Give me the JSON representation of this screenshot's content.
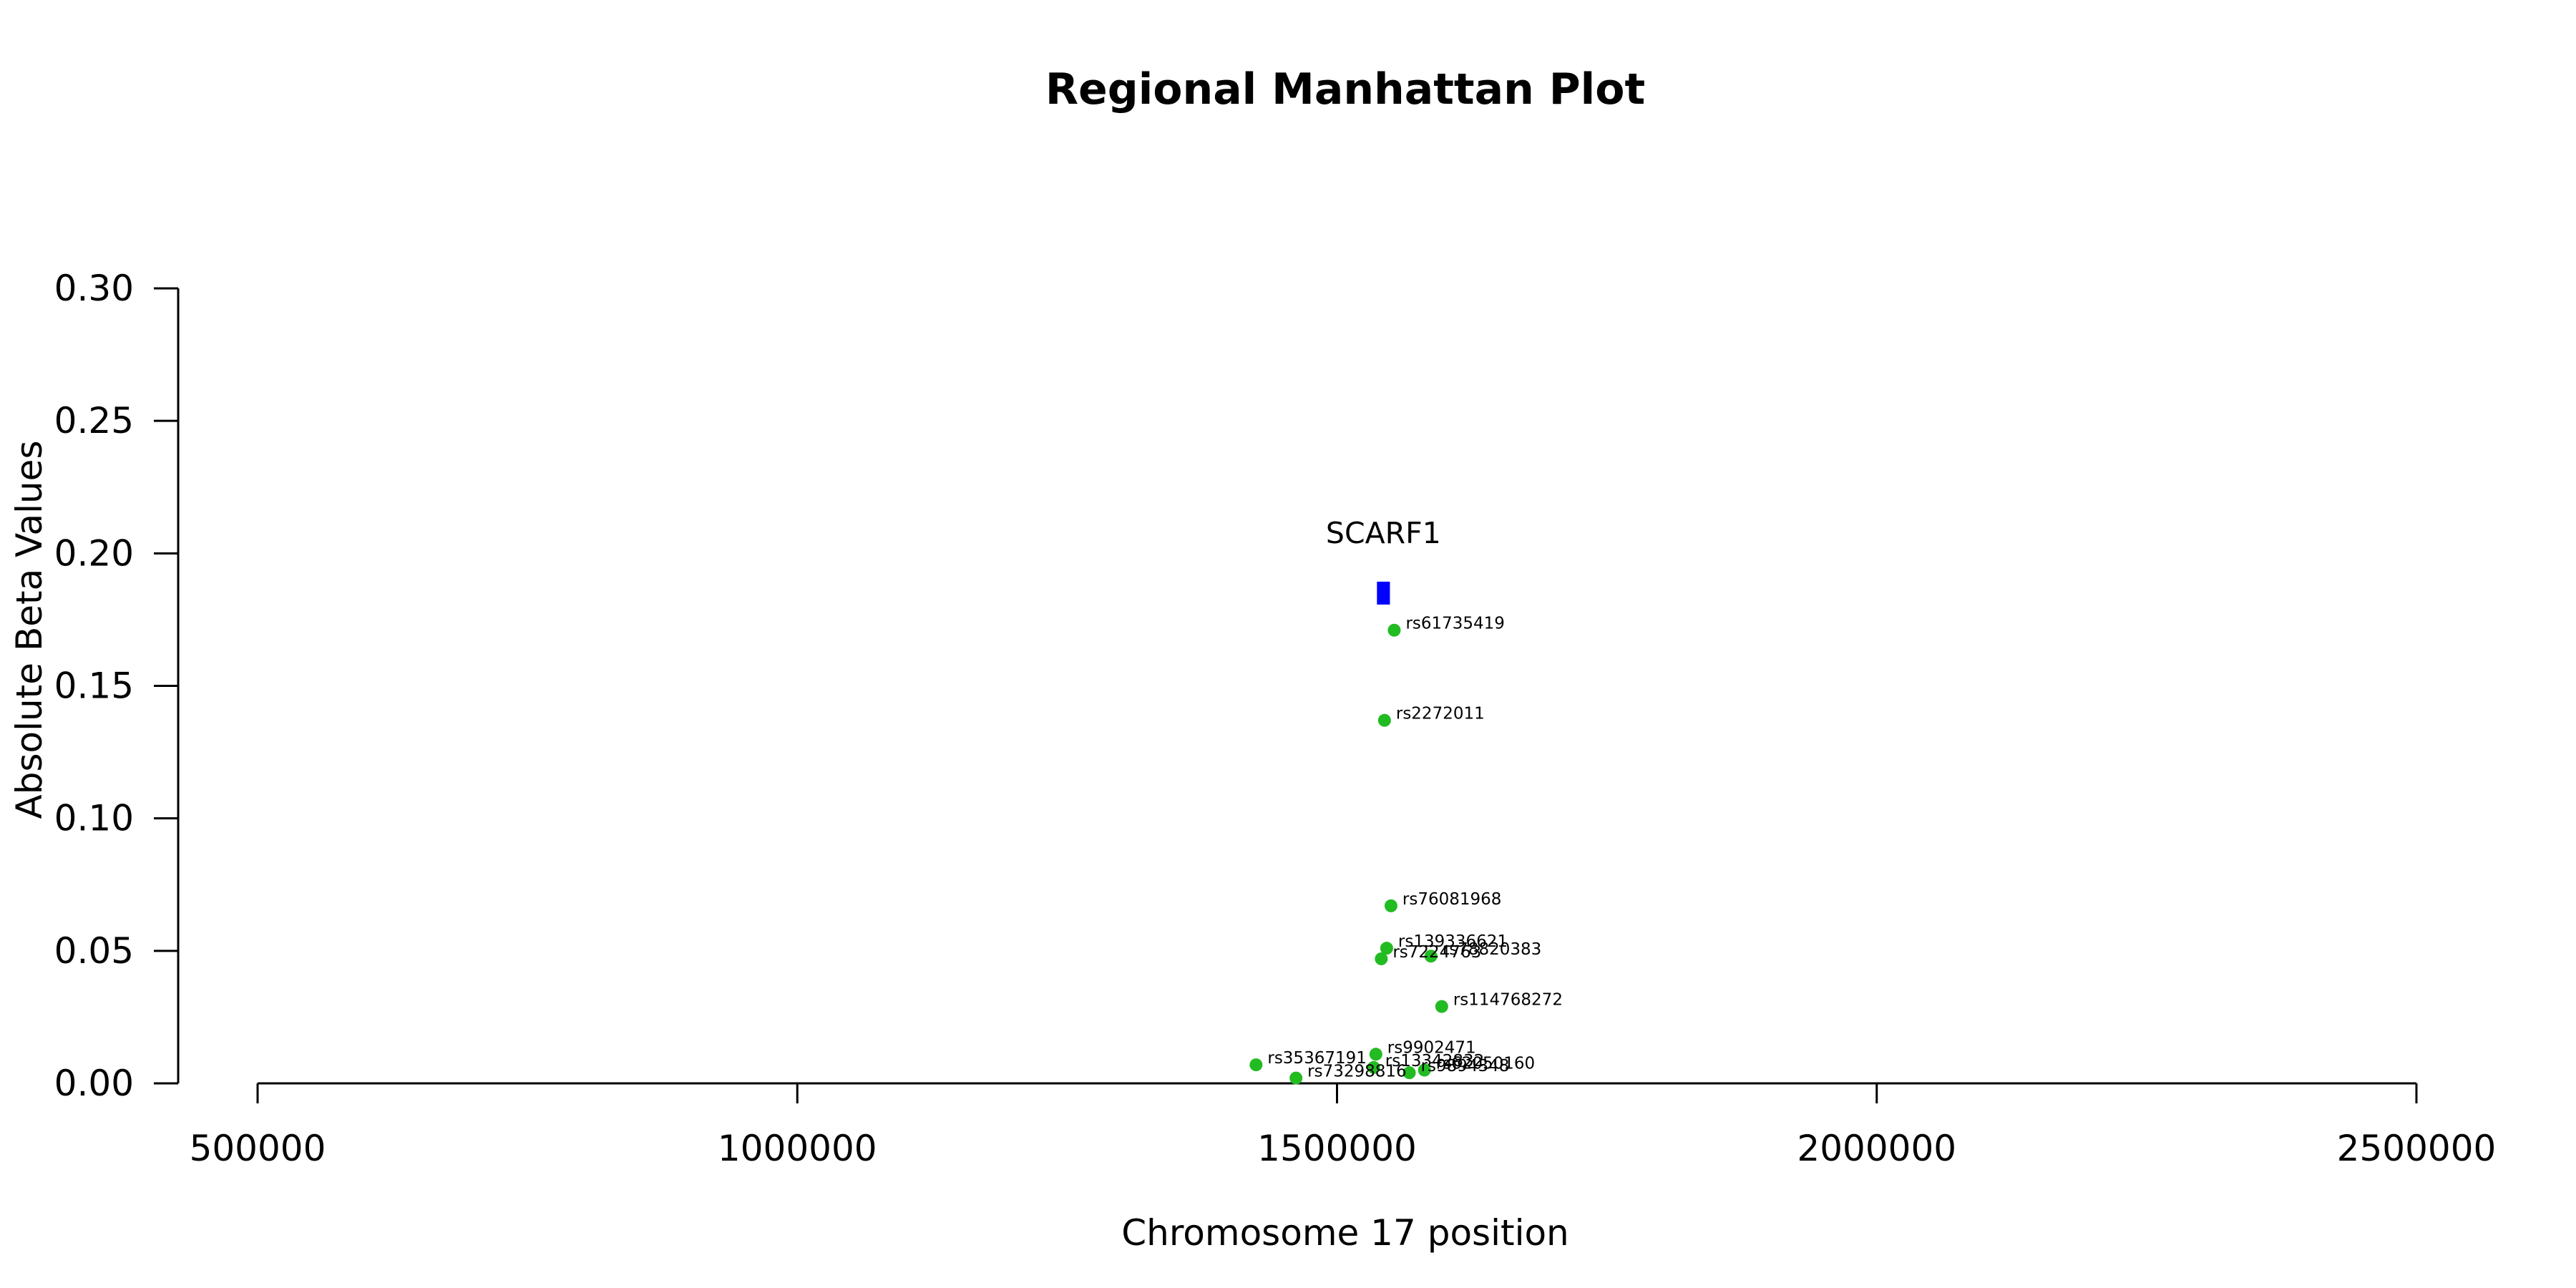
{
  "chart_data": {
    "type": "scatter",
    "title": "Regional Manhattan Plot",
    "xlabel": "Chromosome 17 position",
    "ylabel": "Absolute Beta Values",
    "xlim": [
      500000,
      2500000
    ],
    "ylim": [
      0,
      0.3
    ],
    "x_ticks": [
      500000,
      1000000,
      1500000,
      2000000,
      2500000
    ],
    "x_tick_labels": [
      "500000",
      "1000000",
      "1500000",
      "2000000",
      "2500000"
    ],
    "y_ticks": [
      0,
      0.05,
      0.1,
      0.15,
      0.2,
      0.25,
      0.3
    ],
    "y_tick_labels": [
      "0.00",
      "0.05",
      "0.10",
      "0.15",
      "0.20",
      "0.25",
      "0.30"
    ],
    "grid": false,
    "legend": "none",
    "point_color": "#22bb22",
    "gene_color": "#0000ff",
    "points": [
      {
        "label": "rs61735419",
        "x": 1553000,
        "y": 0.171
      },
      {
        "label": "rs2272011",
        "x": 1544000,
        "y": 0.137
      },
      {
        "label": "rs76081968",
        "x": 1550000,
        "y": 0.067
      },
      {
        "label": "rs139336621",
        "x": 1546000,
        "y": 0.051
      },
      {
        "label": "rs78820383",
        "x": 1587000,
        "y": 0.048
      },
      {
        "label": "rs7224763",
        "x": 1541000,
        "y": 0.047
      },
      {
        "label": "rs114768272",
        "x": 1597000,
        "y": 0.029
      },
      {
        "label": "rs9902471",
        "x": 1536000,
        "y": 0.011
      },
      {
        "label": "rs35367191",
        "x": 1425000,
        "y": 0.007
      },
      {
        "label": "rs13342832",
        "x": 1534000,
        "y": 0.006
      },
      {
        "label": "rs62050160",
        "x": 1581000,
        "y": 0.005
      },
      {
        "label": "rs9894348",
        "x": 1567000,
        "y": 0.004
      },
      {
        "label": "rs73298816",
        "x": 1462000,
        "y": 0.002
      }
    ],
    "genes": [
      {
        "name": "SCARF1",
        "start": 1537000,
        "end": 1549000,
        "y": 0.185
      }
    ]
  }
}
